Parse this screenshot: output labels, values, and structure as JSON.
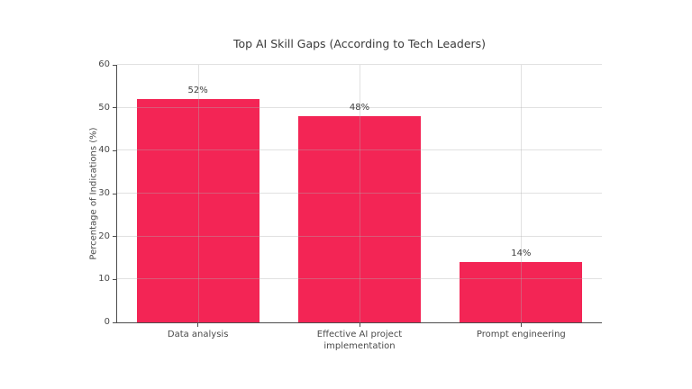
{
  "chart_data": {
    "type": "bar",
    "title": "Top AI Skill Gaps (According to Tech Leaders)",
    "categories": [
      "Data analysis",
      "Effective AI project implementation",
      "Prompt engineering"
    ],
    "values": [
      52,
      48,
      14
    ],
    "data_labels": [
      "52%",
      "48%",
      "14%"
    ],
    "xlabel": "",
    "ylabel": "Percentage of Indications (%)",
    "ylim": [
      0,
      60
    ],
    "yticks": [
      0,
      10,
      20,
      30,
      40,
      50,
      60
    ],
    "grid": "on",
    "grid_position": "above-bars",
    "legend": "none",
    "colors": {
      "bar": "#f32555",
      "background": "#ffffff",
      "axis": "#4d4d4d",
      "text": "#3d3d3d",
      "gridline": "#c9c9c9"
    }
  }
}
